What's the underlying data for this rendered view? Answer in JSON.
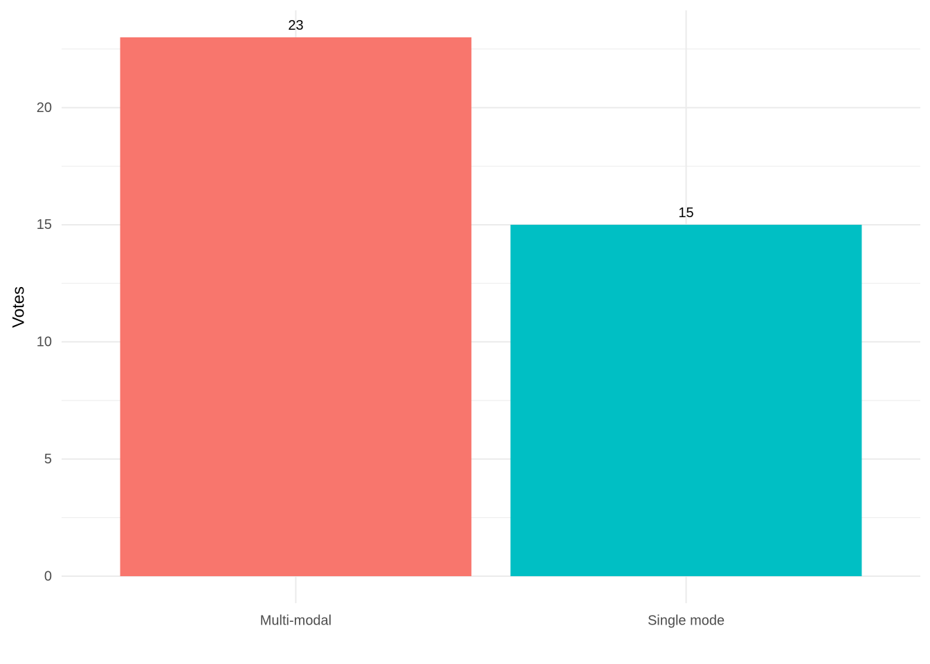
{
  "chart_data": {
    "type": "bar",
    "y_label": "Votes",
    "categories": [
      "Multi-modal",
      "Single mode"
    ],
    "values": [
      23,
      15
    ],
    "colors": [
      "#F8766D",
      "#00BFC4"
    ],
    "ylim": [
      -1.15,
      24.15
    ],
    "yticks": [
      0,
      5,
      10,
      15,
      20
    ],
    "yminorticks": [
      2.5,
      7.5,
      12.5,
      17.5,
      22.5
    ],
    "grid": true,
    "data_labels": true
  }
}
